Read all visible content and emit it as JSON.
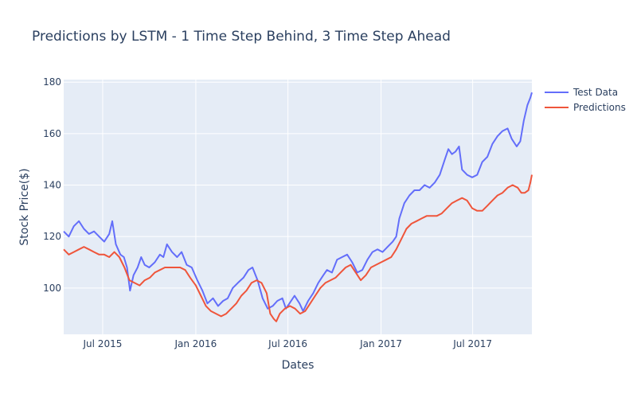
{
  "chart_data": {
    "type": "line",
    "title": "Predictions by LSTM - 1 Time Step Behind, 3 Time Step Ahead",
    "xlabel": "Dates",
    "ylabel": "Stock Price($)",
    "xlim": [
      "2015-04-15",
      "2017-10-26"
    ],
    "ylim": [
      82,
      181
    ],
    "x_ticks": [
      {
        "value": "2015-07-01",
        "label": "Jul 2015"
      },
      {
        "value": "2016-01-01",
        "label": "Jan 2016"
      },
      {
        "value": "2016-07-01",
        "label": "Jul 2016"
      },
      {
        "value": "2017-01-01",
        "label": "Jan 2017"
      },
      {
        "value": "2017-07-01",
        "label": "Jul 2017"
      }
    ],
    "y_ticks": [
      100,
      120,
      140,
      160,
      180
    ],
    "grid": true,
    "legend_position": "top-right",
    "background": "#e5ecf6",
    "series": [
      {
        "name": "Test Data",
        "color": "#636efa",
        "points": [
          [
            "2015-04-15",
            122
          ],
          [
            "2015-04-25",
            120
          ],
          [
            "2015-05-05",
            124
          ],
          [
            "2015-05-15",
            126
          ],
          [
            "2015-05-25",
            123
          ],
          [
            "2015-06-04",
            121
          ],
          [
            "2015-06-14",
            122
          ],
          [
            "2015-06-24",
            120
          ],
          [
            "2015-07-04",
            118
          ],
          [
            "2015-07-14",
            121
          ],
          [
            "2015-07-20",
            126
          ],
          [
            "2015-07-27",
            117
          ],
          [
            "2015-08-05",
            113
          ],
          [
            "2015-08-12",
            112
          ],
          [
            "2015-08-18",
            108
          ],
          [
            "2015-08-24",
            99
          ],
          [
            "2015-08-31",
            105
          ],
          [
            "2015-09-08",
            108
          ],
          [
            "2015-09-15",
            112
          ],
          [
            "2015-09-22",
            109
          ],
          [
            "2015-10-01",
            108
          ],
          [
            "2015-10-12",
            110
          ],
          [
            "2015-10-22",
            113
          ],
          [
            "2015-10-29",
            112
          ],
          [
            "2015-11-05",
            117
          ],
          [
            "2015-11-15",
            114
          ],
          [
            "2015-11-25",
            112
          ],
          [
            "2015-12-04",
            114
          ],
          [
            "2015-12-14",
            109
          ],
          [
            "2015-12-24",
            108
          ],
          [
            "2016-01-04",
            103
          ],
          [
            "2016-01-14",
            99
          ],
          [
            "2016-01-24",
            94
          ],
          [
            "2016-02-04",
            96
          ],
          [
            "2016-02-14",
            93
          ],
          [
            "2016-02-24",
            95
          ],
          [
            "2016-03-04",
            96
          ],
          [
            "2016-03-14",
            100
          ],
          [
            "2016-03-24",
            102
          ],
          [
            "2016-04-04",
            104
          ],
          [
            "2016-04-14",
            107
          ],
          [
            "2016-04-22",
            108
          ],
          [
            "2016-05-02",
            103
          ],
          [
            "2016-05-12",
            96
          ],
          [
            "2016-05-22",
            92
          ],
          [
            "2016-06-01",
            93
          ],
          [
            "2016-06-10",
            95
          ],
          [
            "2016-06-20",
            96
          ],
          [
            "2016-06-27",
            92
          ],
          [
            "2016-07-04",
            94
          ],
          [
            "2016-07-14",
            97
          ],
          [
            "2016-07-24",
            94
          ],
          [
            "2016-07-31",
            91
          ],
          [
            "2016-08-10",
            95
          ],
          [
            "2016-08-20",
            98
          ],
          [
            "2016-08-30",
            102
          ],
          [
            "2016-09-09",
            105
          ],
          [
            "2016-09-16",
            107
          ],
          [
            "2016-09-26",
            106
          ],
          [
            "2016-10-06",
            111
          ],
          [
            "2016-10-16",
            112
          ],
          [
            "2016-10-26",
            113
          ],
          [
            "2016-11-05",
            110
          ],
          [
            "2016-11-15",
            106
          ],
          [
            "2016-11-25",
            107
          ],
          [
            "2016-12-05",
            111
          ],
          [
            "2016-12-15",
            114
          ],
          [
            "2016-12-25",
            115
          ],
          [
            "2017-01-04",
            114
          ],
          [
            "2017-01-14",
            116
          ],
          [
            "2017-01-24",
            118
          ],
          [
            "2017-01-31",
            120
          ],
          [
            "2017-02-06",
            127
          ],
          [
            "2017-02-16",
            133
          ],
          [
            "2017-02-26",
            136
          ],
          [
            "2017-03-08",
            138
          ],
          [
            "2017-03-18",
            138
          ],
          [
            "2017-03-28",
            140
          ],
          [
            "2017-04-07",
            139
          ],
          [
            "2017-04-17",
            141
          ],
          [
            "2017-04-27",
            144
          ],
          [
            "2017-05-07",
            150
          ],
          [
            "2017-05-14",
            154
          ],
          [
            "2017-05-21",
            152
          ],
          [
            "2017-05-28",
            153
          ],
          [
            "2017-06-04",
            155
          ],
          [
            "2017-06-10",
            146
          ],
          [
            "2017-06-20",
            144
          ],
          [
            "2017-06-30",
            143
          ],
          [
            "2017-07-10",
            144
          ],
          [
            "2017-07-20",
            149
          ],
          [
            "2017-07-30",
            151
          ],
          [
            "2017-08-09",
            156
          ],
          [
            "2017-08-19",
            159
          ],
          [
            "2017-08-29",
            161
          ],
          [
            "2017-09-08",
            162
          ],
          [
            "2017-09-16",
            158
          ],
          [
            "2017-09-26",
            155
          ],
          [
            "2017-10-03",
            157
          ],
          [
            "2017-10-10",
            165
          ],
          [
            "2017-10-17",
            171
          ],
          [
            "2017-10-23",
            174
          ],
          [
            "2017-10-26",
            176
          ]
        ]
      },
      {
        "name": "Predictions",
        "color": "#ef553b",
        "points": [
          [
            "2015-04-15",
            115
          ],
          [
            "2015-04-25",
            113
          ],
          [
            "2015-05-05",
            114
          ],
          [
            "2015-05-15",
            115
          ],
          [
            "2015-05-25",
            116
          ],
          [
            "2015-06-04",
            115
          ],
          [
            "2015-06-14",
            114
          ],
          [
            "2015-06-24",
            113
          ],
          [
            "2015-07-04",
            113
          ],
          [
            "2015-07-14",
            112
          ],
          [
            "2015-07-24",
            114
          ],
          [
            "2015-08-03",
            112
          ],
          [
            "2015-08-13",
            108
          ],
          [
            "2015-08-23",
            103
          ],
          [
            "2015-09-02",
            102
          ],
          [
            "2015-09-12",
            101
          ],
          [
            "2015-09-22",
            103
          ],
          [
            "2015-10-02",
            104
          ],
          [
            "2015-10-12",
            106
          ],
          [
            "2015-10-22",
            107
          ],
          [
            "2015-11-01",
            108
          ],
          [
            "2015-11-11",
            108
          ],
          [
            "2015-11-21",
            108
          ],
          [
            "2015-12-01",
            108
          ],
          [
            "2015-12-11",
            107
          ],
          [
            "2015-12-21",
            104
          ],
          [
            "2016-01-01",
            101
          ],
          [
            "2016-01-11",
            97
          ],
          [
            "2016-01-21",
            93
          ],
          [
            "2016-01-31",
            91
          ],
          [
            "2016-02-10",
            90
          ],
          [
            "2016-02-20",
            89
          ],
          [
            "2016-03-01",
            90
          ],
          [
            "2016-03-11",
            92
          ],
          [
            "2016-03-21",
            94
          ],
          [
            "2016-03-31",
            97
          ],
          [
            "2016-04-10",
            99
          ],
          [
            "2016-04-20",
            102
          ],
          [
            "2016-04-30",
            103
          ],
          [
            "2016-05-10",
            102
          ],
          [
            "2016-05-20",
            98
          ],
          [
            "2016-05-27",
            90
          ],
          [
            "2016-06-03",
            88
          ],
          [
            "2016-06-08",
            87
          ],
          [
            "2016-06-15",
            90
          ],
          [
            "2016-06-25",
            92
          ],
          [
            "2016-07-05",
            93
          ],
          [
            "2016-07-15",
            92
          ],
          [
            "2016-07-25",
            90
          ],
          [
            "2016-08-04",
            91
          ],
          [
            "2016-08-14",
            94
          ],
          [
            "2016-08-24",
            97
          ],
          [
            "2016-09-03",
            100
          ],
          [
            "2016-09-13",
            102
          ],
          [
            "2016-09-23",
            103
          ],
          [
            "2016-10-03",
            104
          ],
          [
            "2016-10-13",
            106
          ],
          [
            "2016-10-23",
            108
          ],
          [
            "2016-11-02",
            109
          ],
          [
            "2016-11-12",
            106
          ],
          [
            "2016-11-22",
            103
          ],
          [
            "2016-12-02",
            105
          ],
          [
            "2016-12-12",
            108
          ],
          [
            "2016-12-22",
            109
          ],
          [
            "2017-01-01",
            110
          ],
          [
            "2017-01-11",
            111
          ],
          [
            "2017-01-21",
            112
          ],
          [
            "2017-01-31",
            115
          ],
          [
            "2017-02-10",
            119
          ],
          [
            "2017-02-20",
            123
          ],
          [
            "2017-03-02",
            125
          ],
          [
            "2017-03-12",
            126
          ],
          [
            "2017-03-22",
            127
          ],
          [
            "2017-04-01",
            128
          ],
          [
            "2017-04-11",
            128
          ],
          [
            "2017-04-21",
            128
          ],
          [
            "2017-05-01",
            129
          ],
          [
            "2017-05-11",
            131
          ],
          [
            "2017-05-21",
            133
          ],
          [
            "2017-05-31",
            134
          ],
          [
            "2017-06-10",
            135
          ],
          [
            "2017-06-20",
            134
          ],
          [
            "2017-06-30",
            131
          ],
          [
            "2017-07-10",
            130
          ],
          [
            "2017-07-20",
            130
          ],
          [
            "2017-07-30",
            132
          ],
          [
            "2017-08-09",
            134
          ],
          [
            "2017-08-19",
            136
          ],
          [
            "2017-08-29",
            137
          ],
          [
            "2017-09-08",
            139
          ],
          [
            "2017-09-18",
            140
          ],
          [
            "2017-09-28",
            139
          ],
          [
            "2017-10-05",
            137
          ],
          [
            "2017-10-12",
            137
          ],
          [
            "2017-10-19",
            138
          ],
          [
            "2017-10-23",
            141
          ],
          [
            "2017-10-26",
            144
          ]
        ]
      }
    ]
  }
}
